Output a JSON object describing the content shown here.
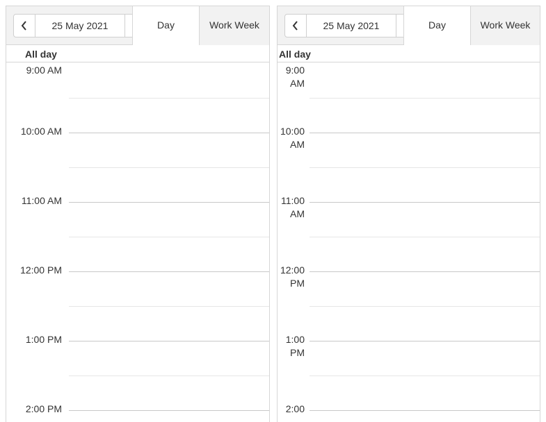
{
  "schedulers": [
    {
      "nav_prev_icon": "chevron-left-icon",
      "date_label": "25 May 2021",
      "views": [
        "Day",
        "Work Week"
      ],
      "active_view": "Day",
      "allday_label": "All day",
      "time_slots": [
        "9:00 AM",
        "10:00 AM",
        "11:00 AM",
        "12:00 PM",
        "1:00 PM",
        "2:00 PM"
      ]
    },
    {
      "nav_prev_icon": "chevron-left-icon",
      "date_label": "25 May 2021",
      "views": [
        "Day",
        "Work Week"
      ],
      "active_view": "Day",
      "allday_label": "All day",
      "time_slots": [
        "9:00 AM",
        "10:00 AM",
        "11:00 AM",
        "12:00 PM",
        "1:00 PM",
        "2:00"
      ]
    }
  ],
  "colors": {
    "toolbar_bg": "#f2f2f2",
    "border": "#d6d6d6",
    "text": "#333333",
    "grid_major": "#c8c8c8",
    "grid_minor": "#e6e6e6"
  }
}
